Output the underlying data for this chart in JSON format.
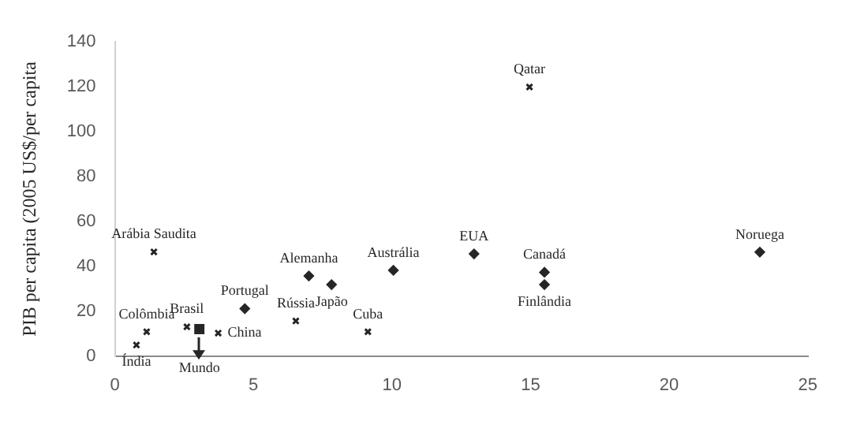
{
  "chart_data": {
    "type": "scatter",
    "ylabel": "PIB per capita (2005 US$/per capita",
    "xlim": [
      0,
      25
    ],
    "xticks": [
      0,
      5,
      10,
      15,
      20,
      25
    ],
    "ylim": [
      0,
      140
    ],
    "yticks": [
      0,
      20,
      40,
      60,
      80,
      100,
      120,
      140
    ],
    "grid": false,
    "legend": false,
    "series": [
      {
        "color": "#262626",
        "marker": "cross",
        "x": [
          1.41,
          1.15,
          0.78,
          2.6,
          3.73,
          6.53,
          9.13,
          14.96
        ],
        "values": [
          46.4,
          10.8,
          4.9,
          13,
          10.2,
          15.6,
          10.8,
          119.9
        ]
      },
      {
        "color": "#262626",
        "marker": "diamond",
        "x": [
          4.69,
          7.0,
          7.82,
          10.05,
          12.96,
          15.5,
          15.5,
          23.27
        ],
        "values": [
          21.1,
          35.7,
          31.8,
          38.2,
          45.5,
          37.3,
          31.8,
          46.3
        ]
      },
      {
        "color": "#262626",
        "marker": "square",
        "x": [
          3.05
        ],
        "values": [
          12
        ]
      }
    ],
    "annotations": [
      {
        "text": "Arábia Saudita",
        "x": 1.41,
        "y": 46.4
      },
      {
        "text": "Colômbia",
        "x": 1.15,
        "y": 10.8
      },
      {
        "text": "Índia",
        "x": 0.78,
        "y": 4.9
      },
      {
        "text": "Brasil",
        "x": 2.6,
        "y": 13
      },
      {
        "text": "China",
        "x": 3.73,
        "y": 10.2
      },
      {
        "text": "Rússia",
        "x": 6.53,
        "y": 15.6
      },
      {
        "text": "Cuba",
        "x": 9.13,
        "y": 10.8
      },
      {
        "text": "Qatar",
        "x": 14.96,
        "y": 119.9
      },
      {
        "text": "Portugal",
        "x": 4.69,
        "y": 21.1
      },
      {
        "text": "Alemanha",
        "x": 7.0,
        "y": 35.7
      },
      {
        "text": "Japão",
        "x": 7.82,
        "y": 31.8
      },
      {
        "text": "Austrália",
        "x": 10.05,
        "y": 38.2
      },
      {
        "text": "EUA",
        "x": 12.96,
        "y": 45.5
      },
      {
        "text": "Canadá",
        "x": 15.5,
        "y": 37.3
      },
      {
        "text": "Finlândia",
        "x": 15.5,
        "y": 31.8
      },
      {
        "text": "Noruega",
        "x": 23.27,
        "y": 46.3
      },
      {
        "text": "Mundo",
        "x": 3.05,
        "y": 0
      }
    ]
  }
}
